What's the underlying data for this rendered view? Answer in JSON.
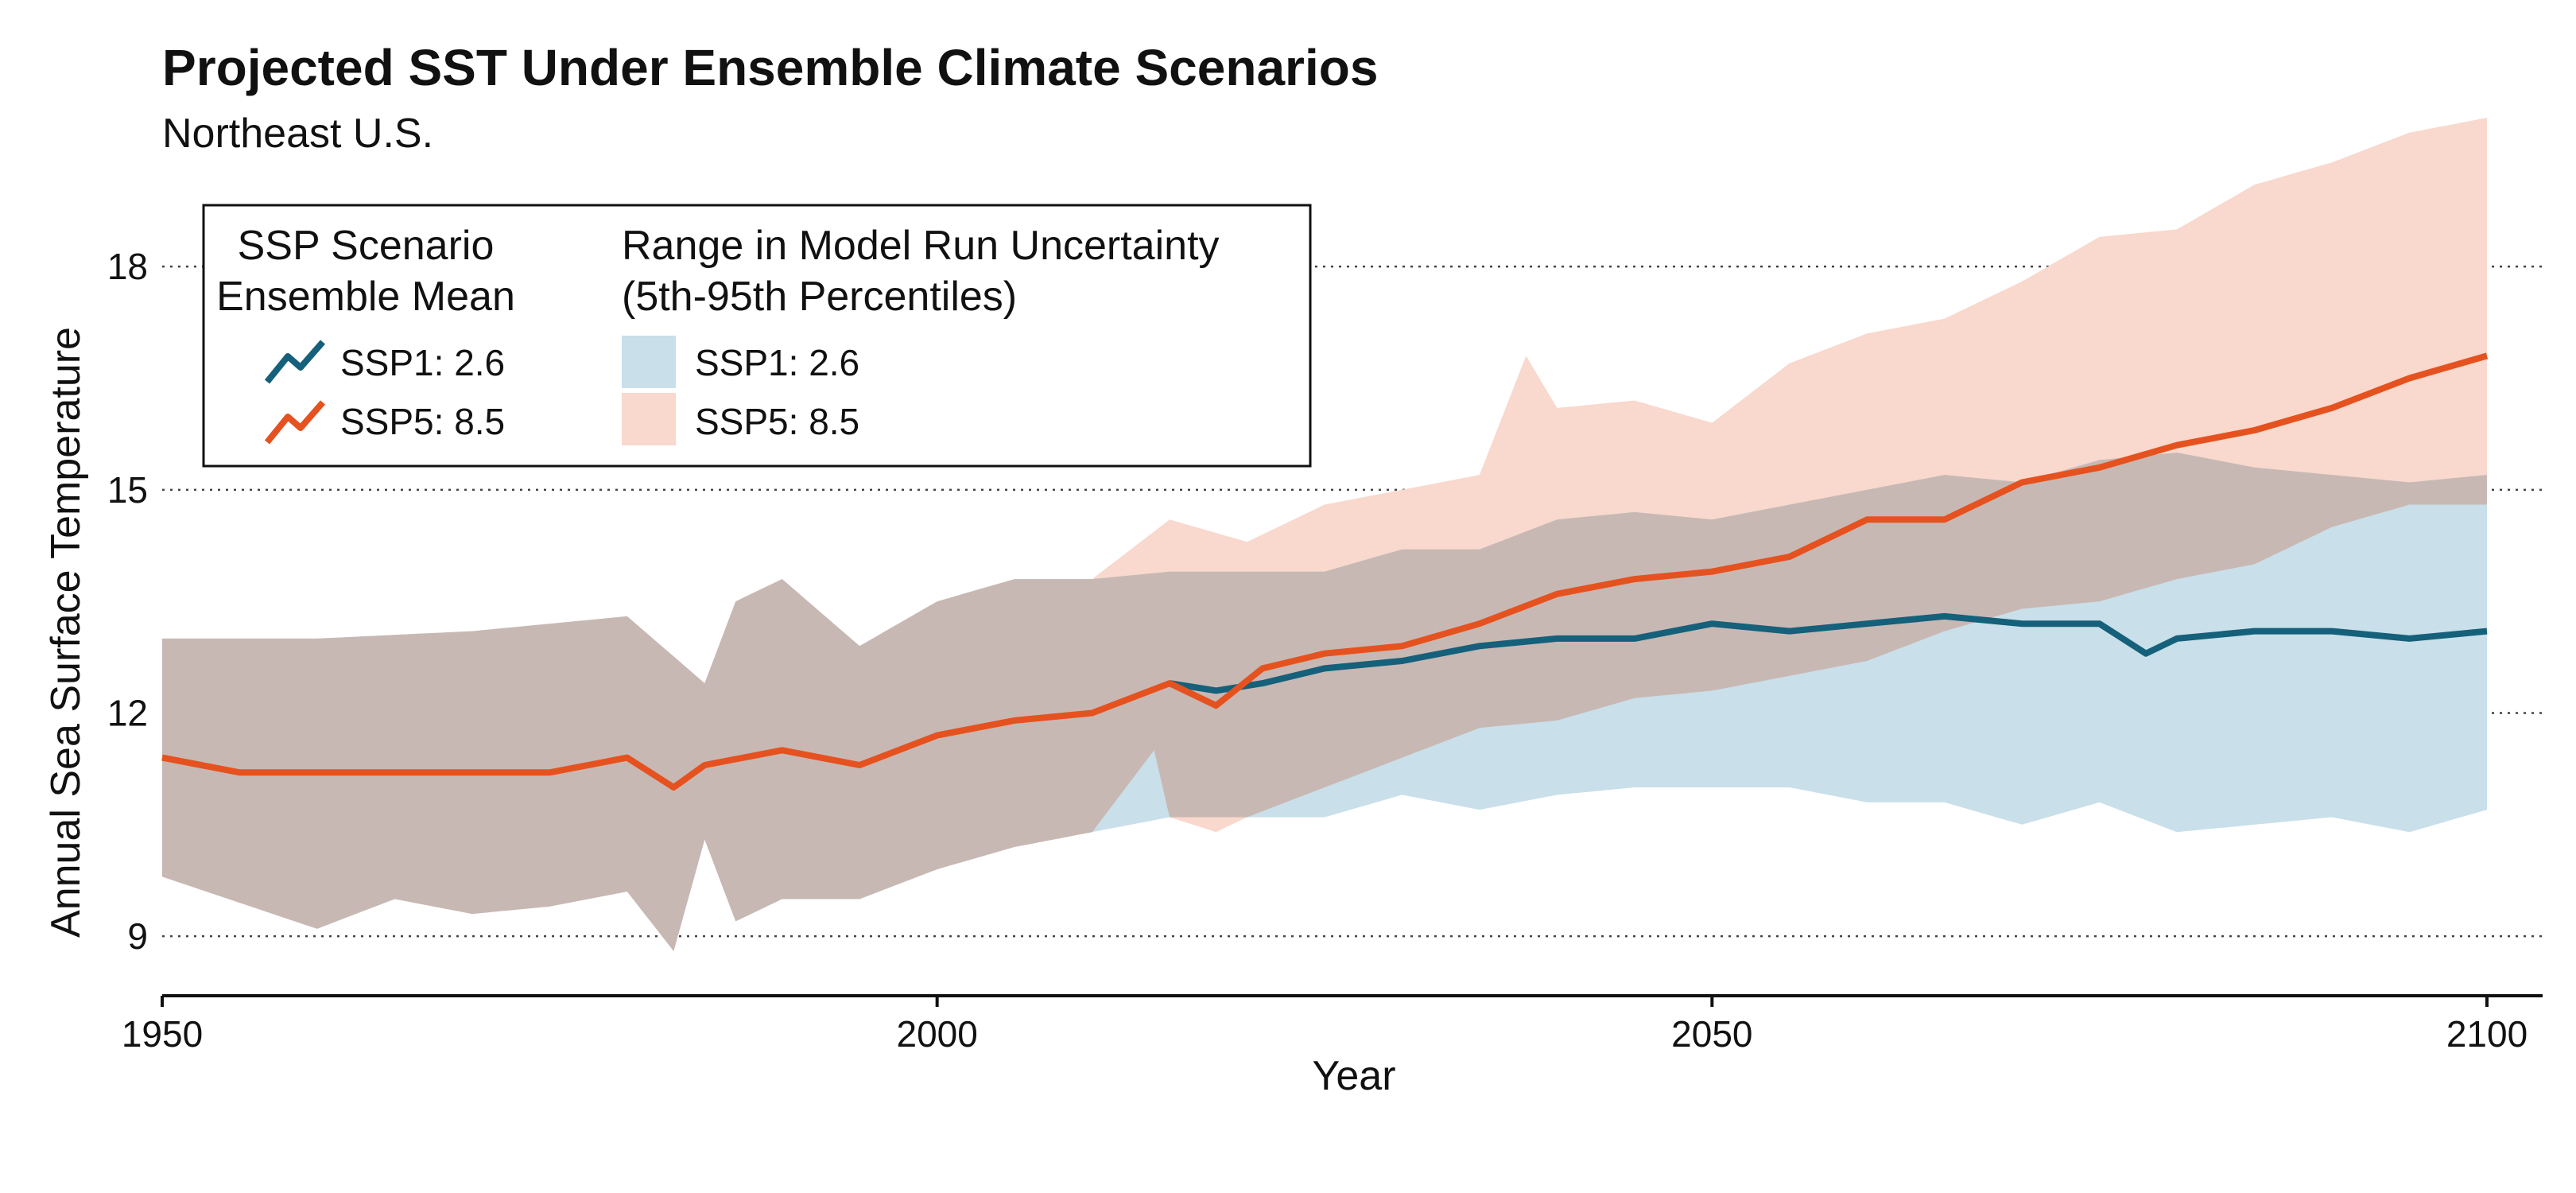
{
  "chart_data": {
    "type": "area",
    "title": "Projected SST Under Ensemble Climate Scenarios",
    "subtitle": "Northeast U.S.",
    "xlabel": "Year",
    "ylabel": "Annual Sea Surface Temperature",
    "xlim": [
      1950,
      2102
    ],
    "ylim": [
      8.2,
      20.3
    ],
    "x_ticks": [
      1950,
      2000,
      2050,
      2100
    ],
    "y_ticks": [
      9,
      12,
      15,
      18
    ],
    "grid": "horizontal dotted",
    "legend": {
      "placement": "top-left",
      "mean_heading": [
        "SSP Scenario",
        "Ensemble Mean"
      ],
      "range_heading": [
        "Range in Model Run Uncertainty",
        "(5th-95th Percentiles)"
      ],
      "mean_items": [
        "SSP1: 2.6",
        "SSP5: 8.5"
      ],
      "range_items": [
        "SSP1: 2.6",
        "SSP5: 8.5"
      ]
    },
    "colors": {
      "ssp1_line": "#15607a",
      "ssp5_line": "#e5521f",
      "ssp1_band": "#c9dfe9",
      "ssp5_band": "#f9d8cd",
      "overlap_band": "#c8b8b3"
    },
    "series": [
      {
        "name": "SSP1: 2.6",
        "kind": "ensemble-mean",
        "points": [
          [
            2015,
            12.4
          ],
          [
            2018,
            12.3
          ],
          [
            2021,
            12.4
          ],
          [
            2025,
            12.6
          ],
          [
            2030,
            12.7
          ],
          [
            2035,
            12.9
          ],
          [
            2040,
            13.0
          ],
          [
            2045,
            13.0
          ],
          [
            2050,
            13.2
          ],
          [
            2055,
            13.1
          ],
          [
            2060,
            13.2
          ],
          [
            2065,
            13.3
          ],
          [
            2070,
            13.2
          ],
          [
            2075,
            13.2
          ],
          [
            2078,
            12.8
          ],
          [
            2080,
            13.0
          ],
          [
            2085,
            13.1
          ],
          [
            2090,
            13.1
          ],
          [
            2095,
            13.0
          ],
          [
            2100,
            13.1
          ]
        ]
      },
      {
        "name": "SSP5: 8.5",
        "kind": "ensemble-mean",
        "points": [
          [
            1950,
            11.4
          ],
          [
            1955,
            11.2
          ],
          [
            1960,
            11.2
          ],
          [
            1965,
            11.2
          ],
          [
            1970,
            11.2
          ],
          [
            1975,
            11.2
          ],
          [
            1980,
            11.4
          ],
          [
            1983,
            11.0
          ],
          [
            1985,
            11.3
          ],
          [
            1990,
            11.5
          ],
          [
            1995,
            11.3
          ],
          [
            2000,
            11.7
          ],
          [
            2005,
            11.9
          ],
          [
            2010,
            12.0
          ],
          [
            2015,
            12.4
          ],
          [
            2018,
            12.1
          ],
          [
            2021,
            12.6
          ],
          [
            2025,
            12.8
          ],
          [
            2030,
            12.9
          ],
          [
            2035,
            13.2
          ],
          [
            2040,
            13.6
          ],
          [
            2045,
            13.8
          ],
          [
            2050,
            13.9
          ],
          [
            2055,
            14.1
          ],
          [
            2060,
            14.6
          ],
          [
            2065,
            14.6
          ],
          [
            2070,
            15.1
          ],
          [
            2075,
            15.3
          ],
          [
            2080,
            15.6
          ],
          [
            2085,
            15.8
          ],
          [
            2090,
            16.1
          ],
          [
            2095,
            16.5
          ],
          [
            2100,
            16.8
          ]
        ]
      },
      {
        "name": "SSP1: 2.6",
        "kind": "range",
        "upper": [
          [
            1950,
            13.0
          ],
          [
            1960,
            13.0
          ],
          [
            1970,
            13.1
          ],
          [
            1980,
            13.3
          ],
          [
            1985,
            12.4
          ],
          [
            1987,
            13.5
          ],
          [
            1990,
            13.8
          ],
          [
            1995,
            12.9
          ],
          [
            2000,
            13.5
          ],
          [
            2005,
            13.8
          ],
          [
            2010,
            13.8
          ],
          [
            2015,
            13.9
          ],
          [
            2020,
            13.9
          ],
          [
            2025,
            13.9
          ],
          [
            2030,
            14.2
          ],
          [
            2035,
            14.2
          ],
          [
            2040,
            14.6
          ],
          [
            2045,
            14.7
          ],
          [
            2050,
            14.6
          ],
          [
            2055,
            14.8
          ],
          [
            2060,
            15.0
          ],
          [
            2065,
            15.2
          ],
          [
            2070,
            15.1
          ],
          [
            2075,
            15.4
          ],
          [
            2080,
            15.5
          ],
          [
            2085,
            15.3
          ],
          [
            2090,
            15.2
          ],
          [
            2095,
            15.1
          ],
          [
            2100,
            15.2
          ]
        ],
        "lower": [
          [
            1950,
            9.8
          ],
          [
            1960,
            9.1
          ],
          [
            1965,
            9.5
          ],
          [
            1970,
            9.3
          ],
          [
            1975,
            9.4
          ],
          [
            1980,
            9.6
          ],
          [
            1983,
            8.8
          ],
          [
            1985,
            10.3
          ],
          [
            1987,
            9.2
          ],
          [
            1990,
            9.5
          ],
          [
            1995,
            9.5
          ],
          [
            2000,
            9.9
          ],
          [
            2005,
            10.2
          ],
          [
            2010,
            10.4
          ],
          [
            2015,
            10.6
          ],
          [
            2020,
            10.6
          ],
          [
            2025,
            10.6
          ],
          [
            2030,
            10.9
          ],
          [
            2035,
            10.7
          ],
          [
            2040,
            10.9
          ],
          [
            2045,
            11.0
          ],
          [
            2050,
            11.0
          ],
          [
            2055,
            11.0
          ],
          [
            2060,
            10.8
          ],
          [
            2065,
            10.8
          ],
          [
            2070,
            10.5
          ],
          [
            2075,
            10.8
          ],
          [
            2080,
            10.4
          ],
          [
            2085,
            10.5
          ],
          [
            2090,
            10.6
          ],
          [
            2095,
            10.4
          ],
          [
            2100,
            10.7
          ]
        ]
      },
      {
        "name": "SSP5: 8.5",
        "kind": "range",
        "upper": [
          [
            1950,
            13.0
          ],
          [
            1960,
            13.0
          ],
          [
            1970,
            13.1
          ],
          [
            1980,
            13.3
          ],
          [
            1985,
            12.4
          ],
          [
            1987,
            13.5
          ],
          [
            1990,
            13.8
          ],
          [
            1995,
            12.9
          ],
          [
            2000,
            13.5
          ],
          [
            2005,
            13.8
          ],
          [
            2010,
            13.8
          ],
          [
            2015,
            14.6
          ],
          [
            2020,
            14.3
          ],
          [
            2025,
            14.8
          ],
          [
            2030,
            15.0
          ],
          [
            2035,
            15.2
          ],
          [
            2038,
            16.8
          ],
          [
            2040,
            16.1
          ],
          [
            2045,
            16.2
          ],
          [
            2050,
            15.9
          ],
          [
            2055,
            16.7
          ],
          [
            2060,
            17.1
          ],
          [
            2065,
            17.3
          ],
          [
            2070,
            17.8
          ],
          [
            2075,
            18.4
          ],
          [
            2080,
            18.5
          ],
          [
            2085,
            19.1
          ],
          [
            2090,
            19.4
          ],
          [
            2095,
            19.8
          ],
          [
            2100,
            20.0
          ]
        ],
        "lower": [
          [
            1950,
            9.8
          ],
          [
            1960,
            9.1
          ],
          [
            1965,
            9.5
          ],
          [
            1970,
            9.3
          ],
          [
            1975,
            9.4
          ],
          [
            1980,
            9.6
          ],
          [
            1983,
            8.8
          ],
          [
            1985,
            10.3
          ],
          [
            1987,
            9.2
          ],
          [
            1990,
            9.5
          ],
          [
            1995,
            9.5
          ],
          [
            2000,
            9.9
          ],
          [
            2005,
            10.2
          ],
          [
            2010,
            10.4
          ],
          [
            2014,
            11.5
          ],
          [
            2015,
            10.6
          ],
          [
            2018,
            10.4
          ],
          [
            2020,
            10.6
          ],
          [
            2025,
            11.0
          ],
          [
            2030,
            11.4
          ],
          [
            2035,
            11.8
          ],
          [
            2040,
            11.9
          ],
          [
            2045,
            12.2
          ],
          [
            2050,
            12.3
          ],
          [
            2055,
            12.5
          ],
          [
            2060,
            12.7
          ],
          [
            2065,
            13.1
          ],
          [
            2070,
            13.4
          ],
          [
            2075,
            13.5
          ],
          [
            2080,
            13.8
          ],
          [
            2085,
            14.0
          ],
          [
            2090,
            14.5
          ],
          [
            2095,
            14.8
          ],
          [
            2100,
            14.8
          ]
        ]
      }
    ]
  }
}
